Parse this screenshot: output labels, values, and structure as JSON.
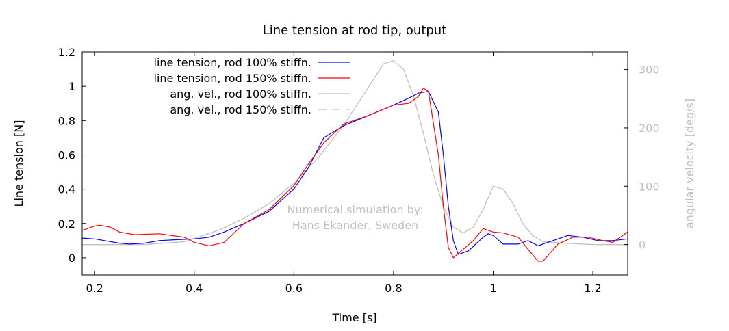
{
  "chart_data": {
    "type": "line",
    "title": "Line tension at rod tip, output",
    "xlabel": "Time [s]",
    "ylabel": "Line tension [N]",
    "y2label": "angular velocity [deg/s]",
    "xlim": [
      0.175,
      1.27
    ],
    "ylim": [
      -0.1,
      1.2
    ],
    "y2lim": [
      -52,
      330
    ],
    "xticks": [
      "0.2",
      "0.4",
      "0.6",
      "0.8",
      "1",
      "1.2"
    ],
    "xtick_values": [
      0.2,
      0.4,
      0.6,
      0.8,
      1.0,
      1.2
    ],
    "yticks": [
      "0",
      "0.2",
      "0.4",
      "0.6",
      "0.8",
      "1",
      "1.2"
    ],
    "ytick_values": [
      0,
      0.2,
      0.4,
      0.6,
      0.8,
      1.0,
      1.2
    ],
    "y2ticks": [
      "0",
      "100",
      "200",
      "300"
    ],
    "y2tick_values": [
      0,
      100,
      200,
      300
    ],
    "grid": false,
    "legend_position": "top-left",
    "annotation": [
      "Numerical simulation by:",
      "Hans Ekander, Sweden"
    ],
    "colors": {
      "tension100": "#0000ff",
      "tension150": "#ff0000",
      "angvel": "#c0c0c0",
      "axis": "#000000",
      "y2axis": "#c0c0c0"
    },
    "series": [
      {
        "name": "line tension, rod 100% stiffn.",
        "axis": "left",
        "style": "solid",
        "x": [
          0.175,
          0.2,
          0.22,
          0.25,
          0.27,
          0.3,
          0.33,
          0.36,
          0.4,
          0.43,
          0.46,
          0.5,
          0.55,
          0.6,
          0.63,
          0.66,
          0.7,
          0.75,
          0.8,
          0.83,
          0.85,
          0.87,
          0.89,
          0.9,
          0.91,
          0.92,
          0.93,
          0.95,
          0.98,
          0.99,
          1.0,
          1.02,
          1.05,
          1.07,
          1.09,
          1.12,
          1.15,
          1.18,
          1.21,
          1.24,
          1.27
        ],
        "y": [
          0.115,
          0.11,
          0.1,
          0.085,
          0.08,
          0.085,
          0.1,
          0.105,
          0.11,
          0.12,
          0.15,
          0.2,
          0.27,
          0.4,
          0.53,
          0.7,
          0.77,
          0.83,
          0.89,
          0.93,
          0.96,
          0.97,
          0.85,
          0.6,
          0.3,
          0.1,
          0.02,
          0.04,
          0.12,
          0.14,
          0.13,
          0.08,
          0.08,
          0.1,
          0.07,
          0.1,
          0.13,
          0.12,
          0.1,
          0.1,
          0.11
        ]
      },
      {
        "name": "line tension, rod 150% stiffn.",
        "axis": "left",
        "style": "solid",
        "x": [
          0.175,
          0.2,
          0.21,
          0.23,
          0.25,
          0.28,
          0.33,
          0.38,
          0.4,
          0.43,
          0.46,
          0.5,
          0.55,
          0.6,
          0.63,
          0.66,
          0.7,
          0.75,
          0.8,
          0.83,
          0.85,
          0.86,
          0.87,
          0.89,
          0.9,
          0.91,
          0.92,
          0.94,
          0.96,
          0.98,
          1.0,
          1.02,
          1.05,
          1.07,
          1.09,
          1.1,
          1.13,
          1.16,
          1.19,
          1.22,
          1.24,
          1.27
        ],
        "y": [
          0.16,
          0.185,
          0.19,
          0.18,
          0.15,
          0.135,
          0.14,
          0.12,
          0.09,
          0.07,
          0.09,
          0.2,
          0.28,
          0.42,
          0.55,
          0.67,
          0.78,
          0.83,
          0.89,
          0.9,
          0.94,
          0.99,
          0.97,
          0.6,
          0.3,
          0.06,
          0.0,
          0.05,
          0.1,
          0.17,
          0.15,
          0.145,
          0.12,
          0.05,
          -0.02,
          -0.02,
          0.08,
          0.12,
          0.12,
          0.1,
          0.09,
          0.15
        ]
      },
      {
        "name": "ang. vel., rod 100% stiffn.",
        "axis": "right",
        "style": "solid",
        "x": [
          0.175,
          0.3,
          0.38,
          0.45,
          0.5,
          0.55,
          0.6,
          0.65,
          0.7,
          0.75,
          0.78,
          0.8,
          0.82,
          0.84,
          0.86,
          0.88,
          0.9,
          0.92,
          0.94,
          0.96,
          0.98,
          1.0,
          1.02,
          1.04,
          1.06,
          1.08,
          1.1,
          1.15,
          1.2,
          1.27
        ],
        "y": [
          0,
          0,
          5,
          25,
          45,
          70,
          105,
          150,
          205,
          270,
          310,
          315,
          300,
          255,
          190,
          120,
          65,
          30,
          20,
          30,
          60,
          100,
          95,
          70,
          35,
          15,
          5,
          2,
          0,
          0
        ]
      },
      {
        "name": "ang. vel., rod 150% stiffn.",
        "axis": "right",
        "style": "dashed",
        "x": [
          0.175,
          0.3,
          0.38,
          0.45,
          0.5,
          0.55,
          0.6,
          0.65,
          0.7,
          0.75,
          0.78,
          0.8,
          0.82,
          0.84,
          0.86,
          0.88,
          0.9,
          0.92,
          0.94,
          0.96,
          0.98,
          1.0,
          1.02,
          1.04,
          1.06,
          1.08,
          1.1,
          1.15,
          1.2,
          1.27
        ],
        "y": [
          0,
          0,
          5,
          25,
          45,
          70,
          105,
          150,
          205,
          270,
          310,
          315,
          300,
          255,
          190,
          120,
          65,
          30,
          20,
          30,
          60,
          100,
          95,
          70,
          35,
          15,
          5,
          2,
          0,
          0
        ]
      }
    ]
  }
}
